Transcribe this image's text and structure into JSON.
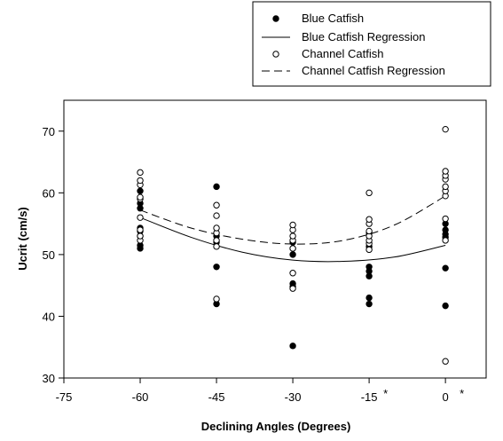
{
  "chart_data": {
    "type": "scatter",
    "title": "",
    "xlabel": "Declining Angles (Degrees)",
    "ylabel": "Ucrit (cm/s)",
    "xlim": [
      -75,
      8
    ],
    "ylim": [
      30,
      75
    ],
    "xticks": [
      -75,
      -60,
      -45,
      -30,
      -15,
      0
    ],
    "yticks": [
      30,
      40,
      50,
      60,
      70
    ],
    "annotations": [
      {
        "text": "*",
        "x": -15
      },
      {
        "text": "*",
        "x": 0
      }
    ],
    "legend_position": "top-right",
    "grid": false,
    "series": [
      {
        "name": "Blue Catfish",
        "kind": "points",
        "marker": "filled-circle",
        "color": "#000000",
        "points": [
          [
            -60,
            51.0
          ],
          [
            -60,
            51.5
          ],
          [
            -60,
            53.0
          ],
          [
            -60,
            53.8
          ],
          [
            -60,
            54.3
          ],
          [
            -60,
            57.5
          ],
          [
            -60,
            58.3
          ],
          [
            -60,
            60.3
          ],
          [
            -45,
            42.0
          ],
          [
            -45,
            48.0
          ],
          [
            -45,
            52.0
          ],
          [
            -45,
            53.0
          ],
          [
            -45,
            61.0
          ],
          [
            -30,
            35.2
          ],
          [
            -30,
            44.8
          ],
          [
            -30,
            45.3
          ],
          [
            -30,
            50.0
          ],
          [
            -30,
            51.0
          ],
          [
            -30,
            52.0
          ],
          [
            -15,
            42.0
          ],
          [
            -15,
            43.0
          ],
          [
            -15,
            46.5
          ],
          [
            -15,
            47.3
          ],
          [
            -15,
            48.0
          ],
          [
            -15,
            51.3
          ],
          [
            -15,
            53.5
          ],
          [
            0,
            41.7
          ],
          [
            0,
            47.8
          ],
          [
            0,
            52.8
          ],
          [
            0,
            53.3
          ],
          [
            0,
            54.0
          ],
          [
            0,
            55.0
          ]
        ]
      },
      {
        "name": "Blue Catfish Regression",
        "kind": "line",
        "dash": "solid",
        "color": "#000000",
        "x": [
          -60,
          -50,
          -40,
          -30,
          -20,
          -10,
          0
        ],
        "y": [
          56.0,
          52.8,
          50.4,
          49.1,
          48.9,
          49.6,
          51.5
        ]
      },
      {
        "name": "Channel Catfish",
        "kind": "points",
        "marker": "open-circle",
        "color": "#000000",
        "points": [
          [
            -60,
            52.3
          ],
          [
            -60,
            53.0
          ],
          [
            -60,
            54.0
          ],
          [
            -60,
            56.0
          ],
          [
            -60,
            59.0
          ],
          [
            -60,
            59.3
          ],
          [
            -60,
            61.3
          ],
          [
            -60,
            62.0
          ],
          [
            -60,
            63.3
          ],
          [
            -45,
            42.8
          ],
          [
            -45,
            51.3
          ],
          [
            -45,
            52.3
          ],
          [
            -45,
            53.5
          ],
          [
            -45,
            54.3
          ],
          [
            -45,
            56.3
          ],
          [
            -45,
            58.0
          ],
          [
            -30,
            44.5
          ],
          [
            -30,
            47.0
          ],
          [
            -30,
            51.0
          ],
          [
            -30,
            52.3
          ],
          [
            -30,
            53.0
          ],
          [
            -30,
            54.0
          ],
          [
            -30,
            54.8
          ],
          [
            -15,
            50.8
          ],
          [
            -15,
            51.8
          ],
          [
            -15,
            52.3
          ],
          [
            -15,
            53.0
          ],
          [
            -15,
            53.8
          ],
          [
            -15,
            55.0
          ],
          [
            -15,
            55.7
          ],
          [
            -15,
            60.0
          ],
          [
            0,
            32.7
          ],
          [
            0,
            52.3
          ],
          [
            0,
            55.8
          ],
          [
            0,
            59.5
          ],
          [
            0,
            60.3
          ],
          [
            0,
            61.0
          ],
          [
            0,
            62.2
          ],
          [
            0,
            62.8
          ],
          [
            0,
            63.5
          ],
          [
            0,
            70.3
          ]
        ]
      },
      {
        "name": "Channel Catfish Regression",
        "kind": "line",
        "dash": "dashed",
        "color": "#000000",
        "x": [
          -60,
          -50,
          -40,
          -30,
          -20,
          -10,
          0
        ],
        "y": [
          57.2,
          54.3,
          52.5,
          51.7,
          52.3,
          54.8,
          59.5
        ]
      }
    ]
  }
}
